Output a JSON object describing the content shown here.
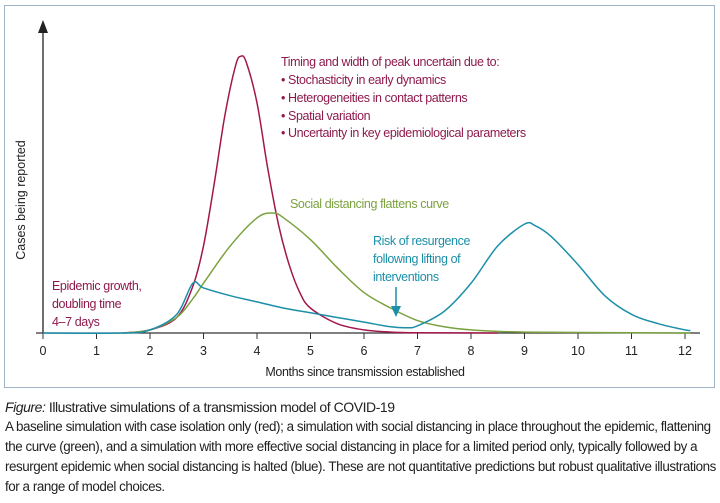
{
  "chart_data": {
    "type": "line",
    "xlabel": "Months since transmission established",
    "ylabel": "Cases being reported",
    "xlim": [
      0,
      12.2
    ],
    "ylim": [
      0,
      100
    ],
    "x_ticks": [
      "0",
      "1",
      "2",
      "3",
      "4",
      "5",
      "6",
      "7",
      "8",
      "9",
      "10",
      "11",
      "12"
    ],
    "grid": false,
    "series": [
      {
        "color": "#a3174d",
        "points": [
          [
            1.5,
            0
          ],
          [
            2,
            1
          ],
          [
            2.5,
            5
          ],
          [
            2.8,
            15
          ],
          [
            3,
            28
          ],
          [
            3.2,
            48
          ],
          [
            3.4,
            70
          ],
          [
            3.6,
            86
          ],
          [
            3.7,
            89
          ],
          [
            3.8,
            87
          ],
          [
            4,
            74
          ],
          [
            4.2,
            53
          ],
          [
            4.4,
            35
          ],
          [
            4.6,
            22
          ],
          [
            4.8,
            13
          ],
          [
            5,
            8
          ],
          [
            5.5,
            3
          ],
          [
            6,
            1
          ],
          [
            6.5,
            0.3
          ],
          [
            7,
            0.1
          ],
          [
            8.5,
            0
          ]
        ]
      },
      {
        "color": "#7ba23f",
        "points": [
          [
            1.5,
            0
          ],
          [
            2,
            1
          ],
          [
            2.5,
            5
          ],
          [
            2.8,
            11
          ],
          [
            3,
            16
          ],
          [
            3.5,
            28
          ],
          [
            4,
            37
          ],
          [
            4.3,
            38.6
          ],
          [
            4.5,
            37
          ],
          [
            5,
            30
          ],
          [
            5.5,
            21
          ],
          [
            6,
            13
          ],
          [
            6.5,
            8
          ],
          [
            7,
            4
          ],
          [
            7.5,
            2
          ],
          [
            8,
            1
          ],
          [
            9,
            0.3
          ],
          [
            12.1,
            0
          ]
        ]
      },
      {
        "color": "#1b8fa8",
        "points": [
          [
            0,
            0
          ],
          [
            1.5,
            0
          ],
          [
            2,
            1
          ],
          [
            2.5,
            6
          ],
          [
            2.8,
            16
          ],
          [
            3,
            14.5
          ],
          [
            3.5,
            12
          ],
          [
            4,
            10
          ],
          [
            4.5,
            8
          ],
          [
            5,
            6.5
          ],
          [
            5.5,
            5
          ],
          [
            6,
            3.5
          ],
          [
            6.5,
            2
          ],
          [
            6.8,
            1.7
          ],
          [
            7,
            2.3
          ],
          [
            7.5,
            7
          ],
          [
            8,
            16
          ],
          [
            8.5,
            28
          ],
          [
            9,
            35
          ],
          [
            9.2,
            34.5
          ],
          [
            9.5,
            31
          ],
          [
            10,
            22
          ],
          [
            10.5,
            12
          ],
          [
            11,
            6
          ],
          [
            11.5,
            3
          ],
          [
            12,
            1
          ],
          [
            12.1,
            0.8
          ]
        ]
      }
    ],
    "annotations": {
      "uncertainty_title": "Timing and width of peak uncertain due to:",
      "uncertainty_items": [
        "• Stochasticity in early dynamics",
        "• Heterogeneities in contact patterns",
        "• Spatial variation",
        "• Uncertainty in key epidemiological parameters"
      ],
      "flatten": "Social distancing flattens curve",
      "resurgence": [
        "Risk of resurgence",
        "following lifting of",
        "interventions"
      ],
      "growth": [
        "Epidemic growth,",
        "doubling time",
        "4–7 days"
      ]
    }
  },
  "caption": {
    "label": "Figure:",
    "title": " Illustrative simulations of a transmission model of COVID-19",
    "text": "A baseline simulation with case isolation only (red); a simulation with social distancing in place throughout the epidemic, flattening the curve (green), and a simulation with more effective social distancing in place for a limited period only, typically followed by a resurgent epidemic when social distancing is halted (blue). These are not quantitative predictions but robust qualitative illustrations for a range of model choices."
  }
}
